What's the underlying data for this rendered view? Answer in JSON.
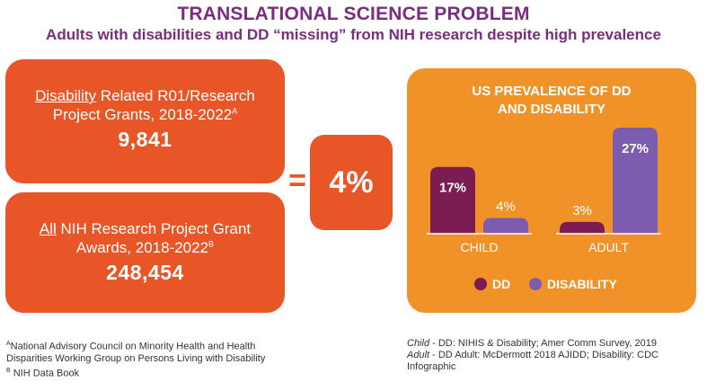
{
  "header": {
    "title": "TRANSLATIONAL SCIENCE PROBLEM",
    "subtitle": "Adults with disabilities and DD “missing” from NIH research despite high prevalence"
  },
  "box1": {
    "underline": "Disability",
    "line1_rest": " Related R01/Research",
    "line2": "Project Grants, 2018-2022",
    "sup": "A",
    "value": "9,841"
  },
  "box2": {
    "underline": "All",
    "line1_rest": " NIH Research Project Grant",
    "line2": "Awards, 2018-2022",
    "sup": "B",
    "value": "248,454"
  },
  "equals": "=",
  "result": "4%",
  "colors": {
    "orange_box": "#e85527",
    "panel": "#f19229",
    "dd": "#7b1d52",
    "disability": "#7c5cae",
    "title": "#7a2d7f"
  },
  "chart_data": {
    "type": "bar",
    "title": "US PREVALENCE OF DD AND DISABILITY",
    "title_lines": [
      "US PREVALENCE OF DD",
      "AND DISABILITY"
    ],
    "categories": [
      "CHILD",
      "ADULT"
    ],
    "series": [
      {
        "name": "DD",
        "values": [
          17,
          3
        ],
        "labels": [
          "17%",
          "3%"
        ]
      },
      {
        "name": "DISABILITY",
        "values": [
          4,
          27
        ],
        "labels": [
          "4%",
          "27%"
        ]
      }
    ],
    "ylim": [
      0,
      27
    ],
    "legend": [
      "DD",
      "DISABILITY"
    ],
    "legend_position": "bottom"
  },
  "footnotes": {
    "left": [
      {
        "sup": "A",
        "text": "National Advisory Council on Minority Health and Health Disparities Working Group on Persons Living with Disability"
      },
      {
        "sup": "B",
        "text": " NIH Data Book"
      }
    ],
    "right": {
      "child_label": "Child",
      "child_text": " - DD: NIHIS & Disability; Amer Comm Survey, 2019",
      "adult_label": "Adult",
      "adult_text": " - DD Adult: McDermott 2018 AJIDD; Disability: CDC Infographic"
    }
  }
}
